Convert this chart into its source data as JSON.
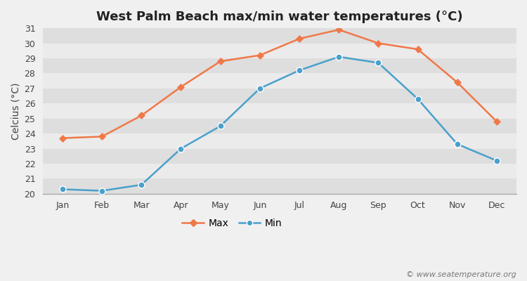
{
  "title": "West Palm Beach max/min water temperatures (°C)",
  "ylabel": "Celcius (°C)",
  "watermark": "© www.seatemperature.org",
  "months": [
    "Jan",
    "Feb",
    "Mar",
    "Apr",
    "May",
    "Jun",
    "Jul",
    "Aug",
    "Sep",
    "Oct",
    "Nov",
    "Dec"
  ],
  "max_temps": [
    23.7,
    23.8,
    25.2,
    27.1,
    28.8,
    29.2,
    30.3,
    30.9,
    30.0,
    29.6,
    27.4,
    24.8
  ],
  "min_temps": [
    20.3,
    20.2,
    20.6,
    23.0,
    24.5,
    27.0,
    28.2,
    29.1,
    28.7,
    26.3,
    23.3,
    22.2
  ],
  "max_color": "#f07848",
  "min_color": "#4aa0cc",
  "bg_color": "#f0f0f0",
  "band_light": "#ebebeb",
  "band_dark": "#dedede",
  "grid_color": "#ffffff",
  "ylim": [
    20,
    31
  ],
  "yticks": [
    20,
    21,
    22,
    23,
    24,
    25,
    26,
    27,
    28,
    29,
    30,
    31
  ],
  "legend_max": "Max",
  "legend_min": "Min",
  "title_fontsize": 13,
  "label_fontsize": 10,
  "tick_fontsize": 9,
  "watermark_fontsize": 8
}
